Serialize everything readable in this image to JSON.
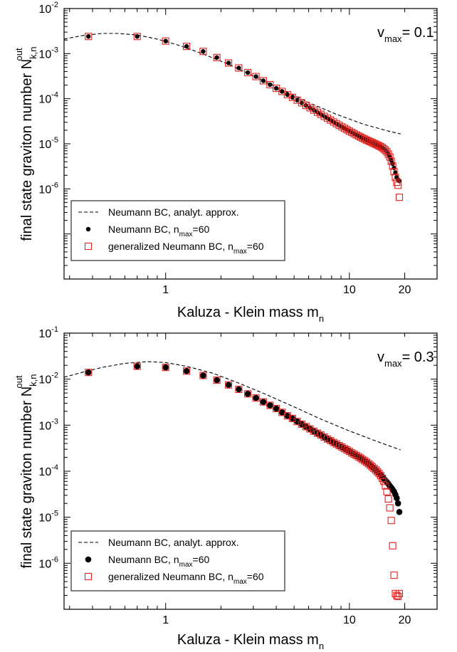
{
  "chart_data": [
    {
      "type": "scatter",
      "x_scale": "log",
      "y_scale": "log",
      "xlim": [
        0.28,
        30
      ],
      "ylim": [
        1e-08,
        0.01
      ],
      "x_ticks": [
        {
          "v": 1,
          "label": "1"
        },
        {
          "v": 10,
          "label": "10"
        },
        {
          "v": 20,
          "label": "20"
        }
      ],
      "y_ticks": [
        {
          "v": 0.01,
          "base": "10",
          "exp": "-2"
        },
        {
          "v": 0.001,
          "base": "10",
          "exp": "-3"
        },
        {
          "v": 0.0001,
          "base": "10",
          "exp": "-4"
        },
        {
          "v": 1e-05,
          "base": "10",
          "exp": "-5"
        },
        {
          "v": 1e-06,
          "base": "10",
          "exp": "-6"
        }
      ],
      "xlabel": {
        "main": "Kaluza - Klein mass m",
        "sub": "n"
      },
      "ylabel": {
        "main": "final state graviton number N",
        "sub": "k,n",
        "sup": "out"
      },
      "annotation": {
        "main": "v",
        "sub": "max",
        "rest": "= 0.1"
      },
      "legend": {
        "position": "bottom-left",
        "entries": [
          {
            "text": "Neumann BC, analyt. approx."
          },
          {
            "text": "Neumann BC, n",
            "sub": "max",
            "after": "=60"
          },
          {
            "text": "generalized Neumann BC, n",
            "sub": "max",
            "after": "=60"
          }
        ]
      },
      "series": [
        {
          "style": "dashed",
          "x": [
            0.28,
            0.35,
            0.45,
            0.55,
            0.7,
            0.9,
            1.2,
            1.6,
            2.2,
            3.0,
            4.2,
            6.0,
            8.5,
            12,
            16,
            19
          ],
          "y": [
            0.0021,
            0.0025,
            0.0028,
            0.0028,
            0.0026,
            0.0021,
            0.0015,
            0.00098,
            0.00058,
            0.00032,
            0.000165,
            8.2e-05,
            4.5e-05,
            2.7e-05,
            1.95e-05,
            1.65e-05
          ]
        },
        {
          "style": "black-dots",
          "x": [
            0.38,
            0.7,
            1.0,
            1.3,
            1.6,
            1.9,
            2.2,
            2.5,
            2.8,
            3.1,
            3.4,
            3.7,
            4.0,
            4.3,
            4.6,
            4.9,
            5.2,
            5.5,
            5.8,
            6.1,
            6.4,
            6.7,
            7.0,
            7.3,
            7.6,
            7.9,
            8.2,
            8.5,
            8.8,
            9.1,
            9.4,
            9.7,
            10.0,
            10.3,
            10.6,
            10.9,
            11.2,
            11.5,
            11.8,
            12.1,
            12.4,
            12.7,
            13.0,
            13.3,
            13.6,
            13.9,
            14.2,
            14.5,
            14.8,
            15.1,
            15.4,
            15.7,
            16.0,
            16.3,
            16.6,
            16.9,
            17.2,
            17.5,
            17.8,
            18.1,
            18.4,
            18.7
          ],
          "y": [
            0.0024,
            0.0024,
            0.0019,
            0.00145,
            0.00112,
            0.00082,
            0.00062,
            0.00048,
            0.00038,
            0.00031,
            0.00025,
            0.000205,
            0.00017,
            0.000145,
            0.000123,
            0.000107,
            9.3e-05,
            8.1e-05,
            7.1e-05,
            6.3e-05,
            5.6e-05,
            5e-05,
            4.5e-05,
            4.05e-05,
            3.68e-05,
            3.35e-05,
            3.05e-05,
            2.79e-05,
            2.57e-05,
            2.37e-05,
            2.2e-05,
            2.05e-05,
            1.91e-05,
            1.79e-05,
            1.68e-05,
            1.58e-05,
            1.49e-05,
            1.41e-05,
            1.34e-05,
            1.27e-05,
            1.21e-05,
            1.16e-05,
            1.11e-05,
            1.06e-05,
            1.02e-05,
            9.8e-06,
            9.4e-06,
            9e-06,
            8.6e-06,
            8.2e-06,
            7.7e-06,
            7.2e-06,
            6.6e-06,
            5.9e-06,
            5.1e-06,
            4.3e-06,
            3.6e-06,
            2.9e-06,
            2.3e-06,
            1.8e-06,
            1.6e-06,
            1.5e-06
          ]
        },
        {
          "style": "red-squares",
          "x": [
            0.38,
            0.7,
            1.0,
            1.3,
            1.6,
            1.9,
            2.2,
            2.5,
            2.8,
            3.1,
            3.4,
            3.7,
            4.0,
            4.3,
            4.6,
            4.9,
            5.2,
            5.5,
            5.8,
            6.1,
            6.4,
            6.7,
            7.0,
            7.3,
            7.6,
            7.9,
            8.2,
            8.5,
            8.8,
            9.1,
            9.4,
            9.7,
            10.0,
            10.3,
            10.6,
            10.9,
            11.2,
            11.5,
            11.8,
            12.1,
            12.4,
            12.7,
            13.0,
            13.3,
            13.6,
            13.9,
            14.2,
            14.5,
            14.8,
            15.1,
            15.4,
            15.7,
            16.0,
            16.3,
            16.6,
            16.9,
            17.2,
            17.5,
            17.8,
            18.1,
            18.4,
            18.7
          ],
          "y": [
            0.0024,
            0.0024,
            0.0019,
            0.00145,
            0.00112,
            0.00082,
            0.00062,
            0.00048,
            0.00038,
            0.00031,
            0.00025,
            0.000205,
            0.00017,
            0.000145,
            0.000123,
            0.000107,
            9.3e-05,
            8.1e-05,
            7.1e-05,
            6.3e-05,
            5.6e-05,
            5e-05,
            4.5e-05,
            4.05e-05,
            3.68e-05,
            3.35e-05,
            3.05e-05,
            2.79e-05,
            2.57e-05,
            2.37e-05,
            2.2e-05,
            2.05e-05,
            1.91e-05,
            1.79e-05,
            1.68e-05,
            1.58e-05,
            1.49e-05,
            1.41e-05,
            1.34e-05,
            1.27e-05,
            1.21e-05,
            1.16e-05,
            1.11e-05,
            1.06e-05,
            1.02e-05,
            9.8e-06,
            9.4e-06,
            9e-06,
            8.6e-06,
            8.2e-06,
            7.7e-06,
            7.2e-06,
            6.6e-06,
            5.9e-06,
            5.1e-06,
            4.1e-06,
            3.2e-06,
            2.4e-06,
            1.8e-06,
            1.4e-06,
            1.2e-06,
            6.5e-07
          ]
        }
      ]
    },
    {
      "type": "scatter",
      "x_scale": "log",
      "y_scale": "log",
      "xlim": [
        0.28,
        30
      ],
      "ylim": [
        1e-07,
        0.1
      ],
      "x_ticks": [
        {
          "v": 1,
          "label": "1"
        },
        {
          "v": 10,
          "label": "10"
        },
        {
          "v": 20,
          "label": "20"
        }
      ],
      "y_ticks": [
        {
          "v": 0.1,
          "base": "10",
          "exp": "-1"
        },
        {
          "v": 0.01,
          "base": "10",
          "exp": "-2"
        },
        {
          "v": 0.001,
          "base": "10",
          "exp": "-3"
        },
        {
          "v": 0.0001,
          "base": "10",
          "exp": "-4"
        },
        {
          "v": 1e-05,
          "base": "10",
          "exp": "-5"
        },
        {
          "v": 1e-06,
          "base": "10",
          "exp": "-6"
        }
      ],
      "xlabel": {
        "main": "Kaluza - Klein mass m",
        "sub": "n"
      },
      "ylabel": {
        "main": "final state graviton number N",
        "sub": "k,n",
        "sup": "out"
      },
      "annotation": {
        "main": "v",
        "sub": "max",
        "rest": "= 0.3"
      },
      "legend": {
        "position": "bottom-left",
        "entries": [
          {
            "text": "Neumann BC, analyt. approx."
          },
          {
            "text": "Neumann BC, n",
            "sub": "max",
            "after": "=60"
          },
          {
            "text": "generalized Neumann BC, n",
            "sub": "max",
            "after": "=60"
          }
        ]
      },
      "series": [
        {
          "style": "dashed",
          "x": [
            0.28,
            0.35,
            0.45,
            0.6,
            0.8,
            1.0,
            1.3,
            1.8,
            2.5,
            3.5,
            5.0,
            7.0,
            10,
            14,
            19
          ],
          "y": [
            0.011,
            0.014,
            0.018,
            0.022,
            0.024,
            0.023,
            0.019,
            0.0135,
            0.0082,
            0.0047,
            0.0025,
            0.00135,
            0.00075,
            0.00045,
            0.00029
          ]
        },
        {
          "style": "black-dots",
          "x": [
            0.38,
            0.7,
            1.0,
            1.3,
            1.6,
            1.9,
            2.2,
            2.5,
            2.8,
            3.1,
            3.4,
            3.7,
            4.0,
            4.3,
            4.6,
            4.9,
            5.2,
            5.5,
            5.8,
            6.1,
            6.4,
            6.7,
            7.0,
            7.3,
            7.6,
            7.9,
            8.2,
            8.5,
            8.8,
            9.1,
            9.4,
            9.7,
            10.0,
            10.3,
            10.6,
            10.9,
            11.2,
            11.5,
            11.8,
            12.1,
            12.4,
            12.7,
            13.0,
            13.3,
            13.6,
            13.9,
            14.2,
            14.5,
            14.8,
            15.1,
            15.4,
            15.7,
            16.0,
            16.3,
            16.6,
            16.9,
            17.2,
            17.5,
            17.8,
            18.1,
            18.4,
            18.7
          ],
          "y": [
            0.014,
            0.019,
            0.018,
            0.015,
            0.012,
            0.0095,
            0.0075,
            0.006,
            0.0048,
            0.0039,
            0.0032,
            0.0027,
            0.0023,
            0.0019,
            0.0016,
            0.0014,
            0.0012,
            0.00105,
            0.00093,
            0.00083,
            0.00074,
            0.00067,
            0.00061,
            0.00055,
            0.0005,
            0.00046,
            0.00042,
            0.00039,
            0.00036,
            0.000335,
            0.00031,
            0.00029,
            0.00027,
            0.00025,
            0.000234,
            0.00022,
            0.000206,
            0.000193,
            0.00018,
            0.000168,
            0.000157,
            0.000146,
            0.000135,
            0.000125,
            0.000115,
            0.000106,
            9.7e-05,
            8.9e-05,
            8.2e-05,
            7.5e-05,
            6.9e-05,
            6.3e-05,
            5.8e-05,
            5.3e-05,
            4.8e-05,
            4.4e-05,
            4e-05,
            3.6e-05,
            3.1e-05,
            2.6e-05,
            2e-05,
            1.3e-05
          ]
        },
        {
          "style": "red-squares",
          "x": [
            0.38,
            0.7,
            1.0,
            1.3,
            1.6,
            1.9,
            2.2,
            2.5,
            2.8,
            3.1,
            3.4,
            3.7,
            4.0,
            4.3,
            4.6,
            4.9,
            5.2,
            5.5,
            5.8,
            6.1,
            6.4,
            6.7,
            7.0,
            7.3,
            7.6,
            7.9,
            8.2,
            8.5,
            8.8,
            9.1,
            9.4,
            9.7,
            10.0,
            10.3,
            10.6,
            10.9,
            11.2,
            11.5,
            11.8,
            12.1,
            12.4,
            12.7,
            13.0,
            13.3,
            13.6,
            13.9,
            14.2,
            14.5,
            14.8,
            15.1,
            15.4,
            15.7,
            16.0,
            16.3,
            16.6,
            16.9,
            17.2,
            17.5,
            17.8,
            18.1,
            18.4,
            18.7
          ],
          "y": [
            0.014,
            0.019,
            0.018,
            0.015,
            0.012,
            0.0095,
            0.0075,
            0.006,
            0.0048,
            0.0039,
            0.0032,
            0.0027,
            0.0023,
            0.0019,
            0.0016,
            0.0014,
            0.0012,
            0.00105,
            0.00093,
            0.00083,
            0.00074,
            0.00067,
            0.00061,
            0.00055,
            0.0005,
            0.00046,
            0.00042,
            0.00039,
            0.00036,
            0.000335,
            0.00031,
            0.00029,
            0.00027,
            0.00025,
            0.000234,
            0.00022,
            0.000206,
            0.000193,
            0.00018,
            0.000168,
            0.000157,
            0.000146,
            0.000135,
            0.000125,
            0.000115,
            0.000106,
            9.7e-05,
            8.9e-05,
            8e-05,
            7e-05,
            6e-05,
            4.8e-05,
            3.6e-05,
            2.5e-05,
            1.6e-05,
            8.5e-06,
            2.4e-06,
            5.5e-07,
            2.2e-07,
            2e-07,
            1.9e-07,
            2.2e-07
          ]
        }
      ]
    }
  ]
}
